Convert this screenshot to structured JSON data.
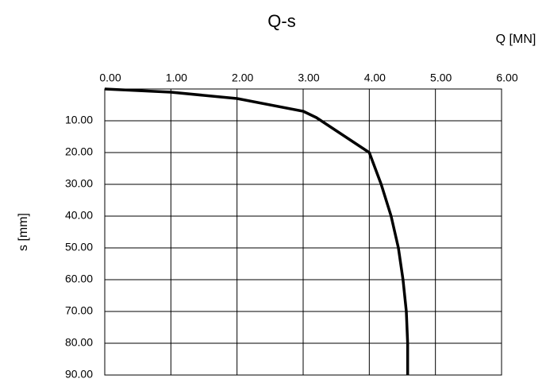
{
  "chart_data": {
    "type": "line",
    "title": "Q-s",
    "x_label": "Q [MN]",
    "y_label": "s [mm]",
    "x": [
      0,
      1,
      2,
      3,
      3.2,
      4,
      4.18,
      4.33,
      4.44,
      4.51,
      4.56,
      4.58,
      4.58
    ],
    "values": [
      0,
      1,
      3,
      7,
      9,
      20,
      30,
      40,
      50,
      60,
      70,
      80,
      90
    ],
    "color": "#000000",
    "xlim": [
      0,
      6
    ],
    "xticks": [
      {
        "value": 0,
        "label": "0.00"
      },
      {
        "value": 1,
        "label": "1.00"
      },
      {
        "value": 2,
        "label": "2.00"
      },
      {
        "value": 3,
        "label": "3.00"
      },
      {
        "value": 4,
        "label": "4.00"
      },
      {
        "value": 5,
        "label": "5.00"
      },
      {
        "value": 6,
        "label": "6.00"
      }
    ],
    "ylim": [
      0,
      90
    ],
    "y_inverted": true,
    "yticks": [
      {
        "value": 10,
        "label": "10.00"
      },
      {
        "value": 20,
        "label": "20.00"
      },
      {
        "value": 30,
        "label": "30.00"
      },
      {
        "value": 40,
        "label": "40.00"
      },
      {
        "value": 50,
        "label": "50.00"
      },
      {
        "value": 60,
        "label": "60.00"
      },
      {
        "value": 70,
        "label": "70.00"
      },
      {
        "value": 80,
        "label": "80.00"
      },
      {
        "value": 90,
        "label": "90.00"
      }
    ],
    "grid": true
  }
}
